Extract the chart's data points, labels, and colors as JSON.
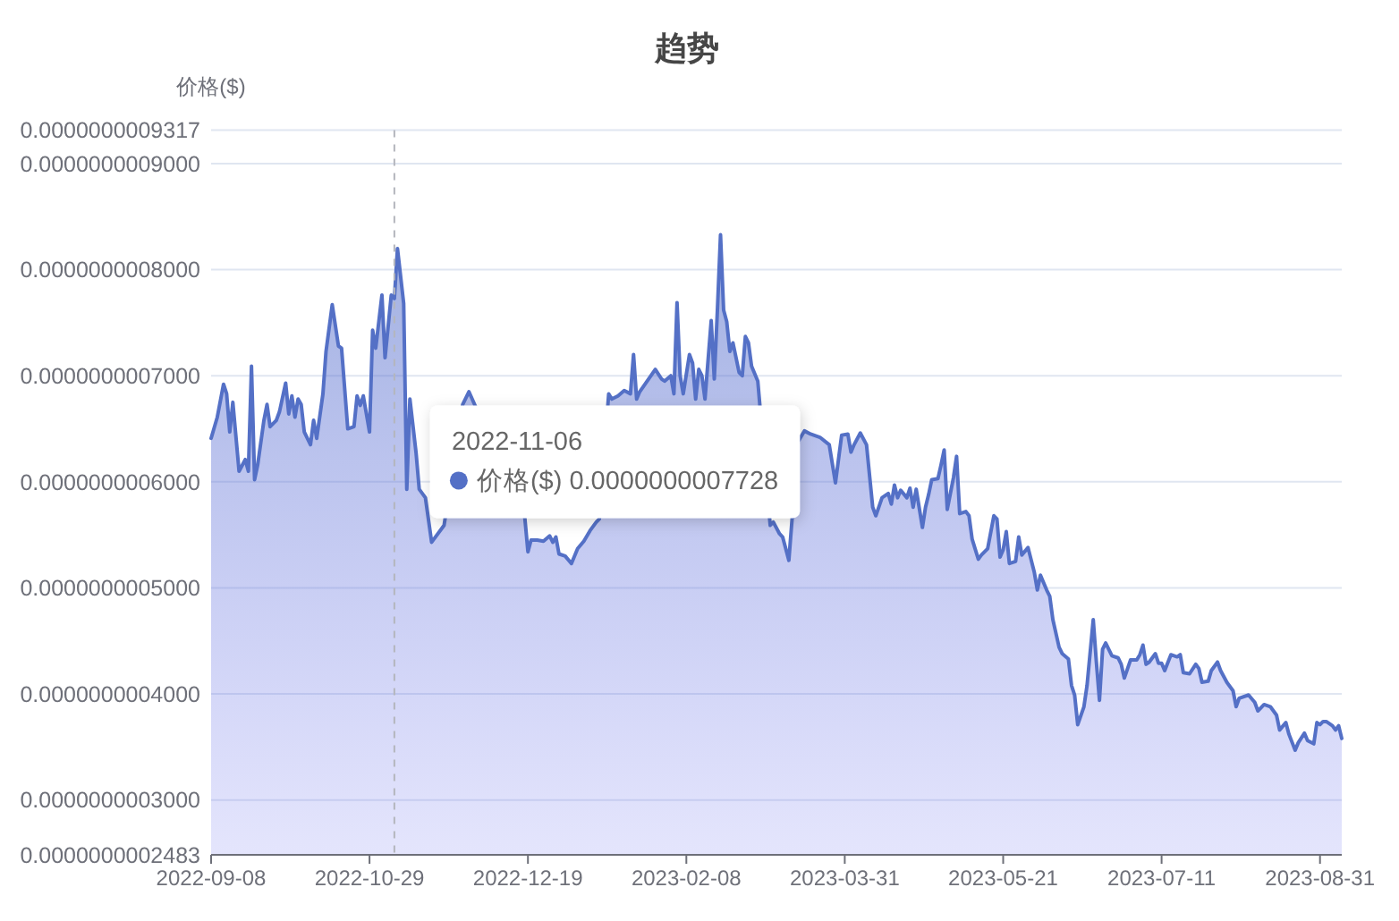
{
  "chart_data": {
    "type": "area",
    "title": "趋势",
    "ylabel": "价格($)",
    "x": [
      "2022-09-08",
      "2022-09-10",
      "2022-09-12",
      "2022-09-13",
      "2022-09-14",
      "2022-09-15",
      "2022-09-17",
      "2022-09-19",
      "2022-09-20",
      "2022-09-21",
      "2022-09-22",
      "2022-09-23",
      "2022-09-25",
      "2022-09-26",
      "2022-09-27",
      "2022-09-29",
      "2022-09-30",
      "2022-10-02",
      "2022-10-03",
      "2022-10-04",
      "2022-10-05",
      "2022-10-06",
      "2022-10-07",
      "2022-10-08",
      "2022-10-10",
      "2022-10-11",
      "2022-10-12",
      "2022-10-14",
      "2022-10-15",
      "2022-10-17",
      "2022-10-19",
      "2022-10-20",
      "2022-10-22",
      "2022-10-24",
      "2022-10-25",
      "2022-10-26",
      "2022-10-27",
      "2022-10-29",
      "2022-10-30",
      "2022-10-31",
      "2022-11-02",
      "2022-11-03",
      "2022-11-05",
      "2022-11-06",
      "2022-11-07",
      "2022-11-09",
      "2022-11-10",
      "2022-11-11",
      "2022-11-13",
      "2022-11-14",
      "2022-11-16",
      "2022-11-18",
      "2022-11-22",
      "2022-11-28",
      "2022-11-30",
      "2022-12-18",
      "2022-12-19",
      "2022-12-20",
      "2022-12-22",
      "2022-12-24",
      "2022-12-26",
      "2022-12-27",
      "2022-12-28",
      "2022-12-29",
      "2022-12-31",
      "2023-01-02",
      "2023-01-04",
      "2023-01-06",
      "2023-01-08",
      "2023-01-10",
      "2023-01-11",
      "2023-01-14",
      "2023-01-15",
      "2023-01-17",
      "2023-01-19",
      "2023-01-21",
      "2023-01-22",
      "2023-01-23",
      "2023-01-24",
      "2023-01-29",
      "2023-01-31",
      "2023-02-01",
      "2023-02-03",
      "2023-02-04",
      "2023-02-05",
      "2023-02-06",
      "2023-02-07",
      "2023-02-09",
      "2023-02-10",
      "2023-02-11",
      "2023-02-12",
      "2023-02-13",
      "2023-02-14",
      "2023-02-16",
      "2023-02-17",
      "2023-02-18",
      "2023-02-19",
      "2023-02-20",
      "2023-02-21",
      "2023-02-22",
      "2023-02-23",
      "2023-02-25",
      "2023-02-26",
      "2023-02-27",
      "2023-02-28",
      "2023-03-01",
      "2023-03-03",
      "2023-03-07",
      "2023-03-08",
      "2023-03-10",
      "2023-03-11",
      "2023-03-13",
      "2023-03-16",
      "2023-03-18",
      "2023-03-20",
      "2023-03-23",
      "2023-03-26",
      "2023-03-28",
      "2023-03-30",
      "2023-04-01",
      "2023-04-02",
      "2023-04-03",
      "2023-04-05",
      "2023-04-07",
      "2023-04-09",
      "2023-04-10",
      "2023-04-12",
      "2023-04-14",
      "2023-04-15",
      "2023-04-16",
      "2023-04-17",
      "2023-04-18",
      "2023-04-20",
      "2023-04-21",
      "2023-04-22",
      "2023-04-23",
      "2023-04-25",
      "2023-04-26",
      "2023-04-27",
      "2023-04-28",
      "2023-04-30",
      "2023-05-01",
      "2023-05-02",
      "2023-05-03",
      "2023-05-05",
      "2023-05-06",
      "2023-05-07",
      "2023-05-09",
      "2023-05-10",
      "2023-05-11",
      "2023-05-13",
      "2023-05-14",
      "2023-05-16",
      "2023-05-18",
      "2023-05-19",
      "2023-05-20",
      "2023-05-21",
      "2023-05-22",
      "2023-05-23",
      "2023-05-25",
      "2023-05-26",
      "2023-05-27",
      "2023-05-29",
      "2023-05-31",
      "2023-06-01",
      "2023-06-02",
      "2023-06-04",
      "2023-06-05",
      "2023-06-06",
      "2023-06-08",
      "2023-06-09",
      "2023-06-11",
      "2023-06-12",
      "2023-06-13",
      "2023-06-14",
      "2023-06-16",
      "2023-06-17",
      "2023-06-19",
      "2023-06-20",
      "2023-06-21",
      "2023-06-22",
      "2023-06-23",
      "2023-06-25",
      "2023-06-27",
      "2023-06-28",
      "2023-06-29",
      "2023-07-01",
      "2023-07-03",
      "2023-07-04",
      "2023-07-05",
      "2023-07-06",
      "2023-07-07",
      "2023-07-09",
      "2023-07-10",
      "2023-07-11",
      "2023-07-12",
      "2023-07-14",
      "2023-07-16",
      "2023-07-17",
      "2023-07-18",
      "2023-07-20",
      "2023-07-22",
      "2023-07-23",
      "2023-07-24",
      "2023-07-26",
      "2023-07-27",
      "2023-07-29",
      "2023-07-30",
      "2023-08-01",
      "2023-08-03",
      "2023-08-04",
      "2023-08-05",
      "2023-08-08",
      "2023-08-10",
      "2023-08-11",
      "2023-08-13",
      "2023-08-15",
      "2023-08-17",
      "2023-08-18",
      "2023-08-20",
      "2023-08-21",
      "2023-08-23",
      "2023-08-24",
      "2023-08-26",
      "2023-08-27",
      "2023-08-29",
      "2023-08-30",
      "2023-08-31",
      "2023-09-01",
      "2023-09-02",
      "2023-09-04",
      "2023-09-05",
      "2023-09-06",
      "2023-09-07"
    ],
    "series": [
      {
        "color": "#5470c6",
        "values": [
          6.41e-10,
          6.61e-10,
          6.92e-10,
          6.83e-10,
          6.47e-10,
          6.75e-10,
          6.1e-10,
          6.21e-10,
          6.1e-10,
          7.09e-10,
          6.02e-10,
          6.16e-10,
          6.58e-10,
          6.73e-10,
          6.52e-10,
          6.58e-10,
          6.66e-10,
          6.93e-10,
          6.64e-10,
          6.81e-10,
          6.61e-10,
          6.78e-10,
          6.73e-10,
          6.47e-10,
          6.35e-10,
          6.58e-10,
          6.41e-10,
          6.83e-10,
          7.23e-10,
          7.67e-10,
          7.28e-10,
          7.26e-10,
          6.5e-10,
          6.52e-10,
          6.81e-10,
          6.72e-10,
          6.81e-10,
          6.47e-10,
          7.43e-10,
          7.26e-10,
          7.76e-10,
          7.17e-10,
          7.76e-10,
          7.728e-10,
          8.2e-10,
          7.68e-10,
          5.93e-10,
          6.78e-10,
          6.27e-10,
          5.93e-10,
          5.85e-10,
          5.43e-10,
          5.59e-10,
          6.73e-10,
          6.85e-10,
          5.66e-10,
          5.34e-10,
          5.45e-10,
          5.45e-10,
          5.44e-10,
          5.49e-10,
          5.43e-10,
          5.48e-10,
          5.32e-10,
          5.3e-10,
          5.23e-10,
          5.37e-10,
          5.44e-10,
          5.54e-10,
          5.62e-10,
          5.65e-10,
          6.83e-10,
          6.78e-10,
          6.81e-10,
          6.86e-10,
          6.83e-10,
          7.2e-10,
          6.78e-10,
          6.85e-10,
          7.06e-10,
          6.97e-10,
          6.95e-10,
          7e-10,
          6.83e-10,
          7.69e-10,
          7e-10,
          6.83e-10,
          7.2e-10,
          7.12e-10,
          6.78e-10,
          7.06e-10,
          7e-10,
          6.78e-10,
          7.52e-10,
          6.97e-10,
          7.62e-10,
          8.33e-10,
          7.62e-10,
          7.51e-10,
          7.23e-10,
          7.31e-10,
          7.03e-10,
          7e-10,
          7.37e-10,
          7.31e-10,
          7.09e-10,
          6.95e-10,
          5.59e-10,
          5.62e-10,
          5.51e-10,
          5.48e-10,
          5.26e-10,
          6.38e-10,
          6.48e-10,
          6.45e-10,
          6.42e-10,
          6.35e-10,
          5.99e-10,
          6.44e-10,
          6.45e-10,
          6.28e-10,
          6.35e-10,
          6.46e-10,
          6.35e-10,
          5.76e-10,
          5.68e-10,
          5.85e-10,
          5.89e-10,
          5.79e-10,
          5.97e-10,
          5.85e-10,
          5.92e-10,
          5.85e-10,
          5.94e-10,
          5.76e-10,
          5.93e-10,
          5.57e-10,
          5.76e-10,
          5.88e-10,
          6.02e-10,
          6.03e-10,
          6.16e-10,
          6.3e-10,
          5.74e-10,
          6.04e-10,
          6.24e-10,
          5.7e-10,
          5.72e-10,
          5.68e-10,
          5.46e-10,
          5.27e-10,
          5.31e-10,
          5.37e-10,
          5.68e-10,
          5.65e-10,
          5.29e-10,
          5.36e-10,
          5.53e-10,
          5.23e-10,
          5.25e-10,
          5.48e-10,
          5.31e-10,
          5.38e-10,
          5.15e-10,
          4.98e-10,
          5.12e-10,
          4.98e-10,
          4.92e-10,
          4.7e-10,
          4.44e-10,
          4.38e-10,
          4.33e-10,
          4.08e-10,
          3.99e-10,
          3.71e-10,
          3.88e-10,
          4.08e-10,
          4.7e-10,
          4.3e-10,
          3.94e-10,
          4.42e-10,
          4.48e-10,
          4.36e-10,
          4.34e-10,
          4.28e-10,
          4.15e-10,
          4.32e-10,
          4.32e-10,
          4.37e-10,
          4.46e-10,
          4.28e-10,
          4.3e-10,
          4.38e-10,
          4.29e-10,
          4.29e-10,
          4.22e-10,
          4.37e-10,
          4.35e-10,
          4.37e-10,
          4.2e-10,
          4.19e-10,
          4.28e-10,
          4.24e-10,
          4.11e-10,
          4.12e-10,
          4.22e-10,
          4.3e-10,
          4.22e-10,
          4.11e-10,
          4.03e-10,
          3.88e-10,
          3.96e-10,
          3.99e-10,
          3.92e-10,
          3.84e-10,
          3.9e-10,
          3.88e-10,
          3.8e-10,
          3.66e-10,
          3.73e-10,
          3.62e-10,
          3.47e-10,
          3.54e-10,
          3.63e-10,
          3.56e-10,
          3.53e-10,
          3.73e-10,
          3.71e-10,
          3.74e-10,
          3.74e-10,
          3.7e-10,
          3.66e-10,
          3.7e-10,
          3.58e-10
        ]
      }
    ],
    "xlim": [
      "2022-09-08",
      "2023-09-07"
    ],
    "xticks": [
      "2022-09-08",
      "2022-10-29",
      "2022-12-19",
      "2023-02-08",
      "2023-03-31",
      "2023-05-21",
      "2023-07-11",
      "2023-08-31"
    ],
    "ylim": [
      2.483e-10,
      9.317e-10
    ],
    "yticks": [
      {
        "value": 2.483e-10,
        "label": "0.0000000002483"
      },
      {
        "value": 3e-10,
        "label": "0.0000000003000"
      },
      {
        "value": 4e-10,
        "label": "0.0000000004000"
      },
      {
        "value": 5e-10,
        "label": "0.0000000005000"
      },
      {
        "value": 6e-10,
        "label": "0.0000000006000"
      },
      {
        "value": 7e-10,
        "label": "0.0000000007000"
      },
      {
        "value": 8e-10,
        "label": "0.0000000008000"
      },
      {
        "value": 9e-10,
        "label": "0.0000000009000"
      },
      {
        "value": 9.317e-10,
        "label": "0.0000000009317"
      }
    ],
    "grid": "y",
    "ref_lines": [
      {
        "axis": "x",
        "value": "2022-11-06",
        "color": "#b4b6bd",
        "line_style": "dashed"
      }
    ],
    "annotations": [
      "2022-11-06",
      "价格($) 0.0000000007728"
    ]
  }
}
